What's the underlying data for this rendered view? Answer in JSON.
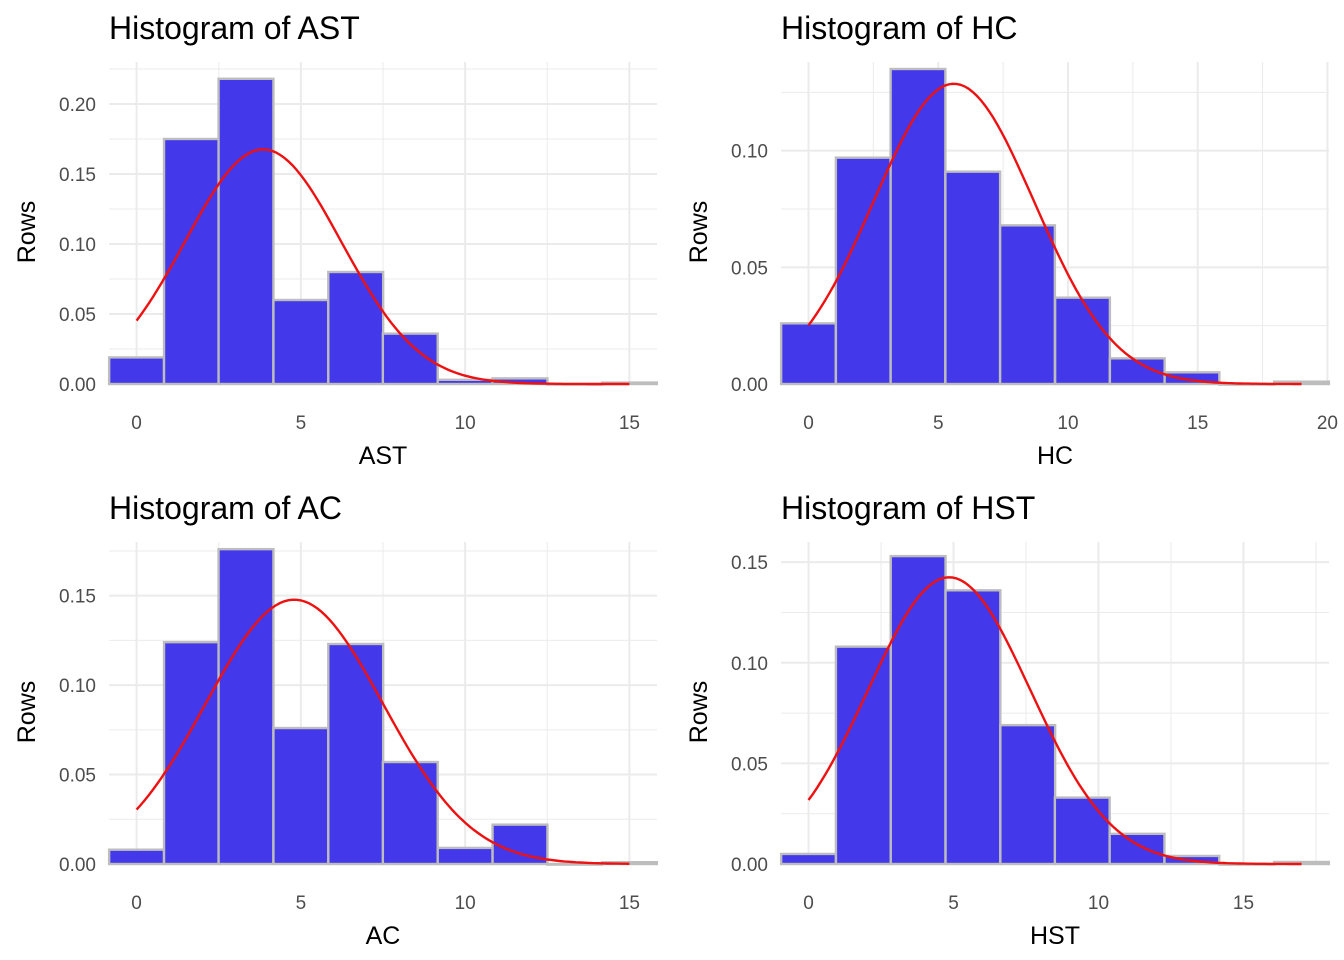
{
  "colors": {
    "bar_fill": "#4338ea",
    "bar_outline": "#bdbdbd",
    "density_line": "#ee1111",
    "grid": "#ebebeb",
    "tick_label": "#4d4d4d"
  },
  "chart_data": [
    {
      "type": "bar",
      "title": "Histogram of AST",
      "xlabel": "AST",
      "ylabel": "Rows",
      "bin_width": 1.67,
      "bin_centers": [
        0.0,
        1.67,
        3.33,
        5.0,
        6.67,
        8.33,
        10.0,
        11.67,
        13.33,
        15.0
      ],
      "values": [
        0.019,
        0.175,
        0.218,
        0.06,
        0.08,
        0.036,
        0.003,
        0.004,
        0.0,
        0.001
      ],
      "xlim": [
        -0.84,
        15.84
      ],
      "ylim": [
        0,
        0.23
      ],
      "x_ticks": [
        0,
        5,
        10,
        15
      ],
      "x_tick_labels": [
        "0",
        "5",
        "10",
        "15"
      ],
      "y_ticks": [
        0.0,
        0.05,
        0.1,
        0.15,
        0.2
      ],
      "y_tick_labels": [
        "0.00",
        "0.05",
        "0.10",
        "0.15",
        "0.20"
      ],
      "density": {
        "mean": 3.85,
        "sd": 2.38,
        "x_range": [
          0,
          15
        ]
      },
      "grid": true,
      "legend": "none"
    },
    {
      "type": "bar",
      "title": "Histogram of HC",
      "xlabel": "HC",
      "ylabel": "Rows",
      "bin_width": 2.11,
      "bin_centers": [
        0.0,
        2.11,
        4.22,
        6.33,
        8.44,
        10.56,
        12.67,
        14.78,
        16.89,
        19.0
      ],
      "values": [
        0.026,
        0.097,
        0.135,
        0.091,
        0.068,
        0.037,
        0.011,
        0.005,
        0.0,
        0.001
      ],
      "xlim": [
        -1.06,
        20.06
      ],
      "ylim": [
        0,
        0.138
      ],
      "x_ticks": [
        0,
        5,
        10,
        15,
        20
      ],
      "x_tick_labels": [
        "0",
        "5",
        "10",
        "15",
        "20"
      ],
      "y_ticks": [
        0.0,
        0.05,
        0.1
      ],
      "y_tick_labels": [
        "0.00",
        "0.05",
        "0.10"
      ],
      "density": {
        "mean": 5.6,
        "sd": 3.1,
        "x_range": [
          0,
          19
        ]
      },
      "grid": true,
      "legend": "none"
    },
    {
      "type": "bar",
      "title": "Histogram of AC",
      "xlabel": "AC",
      "ylabel": "Rows",
      "bin_width": 1.67,
      "bin_centers": [
        0.0,
        1.67,
        3.33,
        5.0,
        6.67,
        8.33,
        10.0,
        11.67,
        13.33,
        15.0
      ],
      "values": [
        0.008,
        0.124,
        0.176,
        0.076,
        0.123,
        0.057,
        0.009,
        0.022,
        0.0,
        0.001
      ],
      "xlim": [
        -0.84,
        15.84
      ],
      "ylim": [
        0,
        0.18
      ],
      "x_ticks": [
        0,
        5,
        10,
        15
      ],
      "x_tick_labels": [
        "0",
        "5",
        "10",
        "15"
      ],
      "y_ticks": [
        0.0,
        0.05,
        0.1,
        0.15
      ],
      "y_tick_labels": [
        "0.00",
        "0.05",
        "0.10",
        "0.15"
      ],
      "density": {
        "mean": 4.8,
        "sd": 2.7,
        "x_range": [
          0,
          15
        ]
      },
      "grid": true,
      "legend": "none"
    },
    {
      "type": "bar",
      "title": "Histogram of HST",
      "xlabel": "HST",
      "ylabel": "Rows",
      "bin_width": 1.89,
      "bin_centers": [
        0.0,
        1.89,
        3.78,
        5.67,
        7.56,
        9.44,
        11.33,
        13.22,
        15.11,
        17.0
      ],
      "values": [
        0.005,
        0.108,
        0.153,
        0.136,
        0.069,
        0.033,
        0.015,
        0.004,
        0.0,
        0.001
      ],
      "xlim": [
        -0.95,
        17.95
      ],
      "ylim": [
        0,
        0.16
      ],
      "x_ticks": [
        0,
        5,
        10,
        15
      ],
      "x_tick_labels": [
        "0",
        "5",
        "10",
        "15"
      ],
      "y_ticks": [
        0.0,
        0.05,
        0.1,
        0.15
      ],
      "y_tick_labels": [
        "0.00",
        "0.05",
        "0.10",
        "0.15"
      ],
      "density": {
        "mean": 4.85,
        "sd": 2.8,
        "x_range": [
          0,
          17
        ]
      },
      "grid": true,
      "legend": "none"
    }
  ]
}
